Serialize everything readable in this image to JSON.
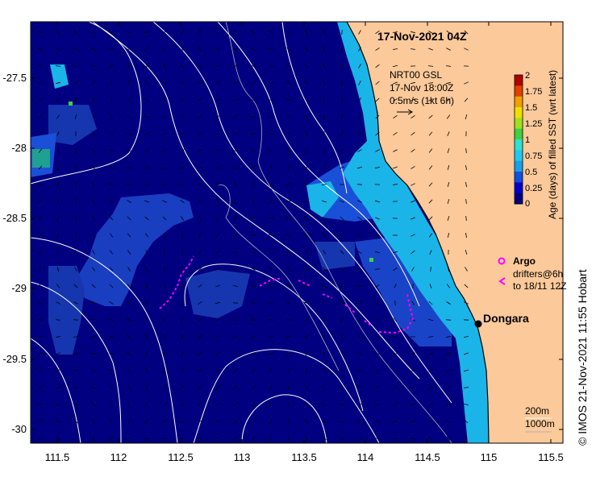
{
  "map": {
    "title": "17-Nov-2021 04Z",
    "x_ticks": [
      "111.5",
      "112",
      "112.5",
      "113",
      "113.5",
      "114",
      "114.5",
      "115",
      "115.5"
    ],
    "y_ticks": [
      "-27.5",
      "-28",
      "-28.5",
      "-29",
      "-29.5",
      "-30"
    ],
    "lon_range": [
      111.3,
      115.6
    ],
    "lat_range": [
      -30.1,
      -27.1
    ]
  },
  "current_annotation": {
    "line1": "NRT00 GSL",
    "line2": "17-Nov 18:00Z",
    "line3": "0.5m/s (1kt 6h)"
  },
  "colorbar": {
    "label": "Age (days) of filled SST (wrt latest)",
    "ticks": [
      "0",
      "0.25",
      "0.5",
      "0.75",
      "1",
      "1.25",
      "1.5",
      "1.75",
      "2"
    ],
    "colors": [
      "#000080",
      "#0000c8",
      "#1050e0",
      "#1aa0e8",
      "#20c8f0",
      "#30e0d0",
      "#40d040",
      "#a0e020",
      "#f0e000",
      "#f0a000",
      "#e04000",
      "#b00000"
    ]
  },
  "legend": {
    "argo_label": "Argo",
    "drifters_line1": "drifters@6h",
    "drifters_line2": "to 18/11 12Z",
    "argo_color": "#ff00ff"
  },
  "places": {
    "dongara": "Dongara"
  },
  "isobaths": {
    "depth1": "200m",
    "depth2": "1000m"
  },
  "credit": "© IMOS 21-Nov-2021 11:55 Hobart",
  "colors": {
    "ocean": "#000080",
    "land": "#fbc99a",
    "shelf_cyan": "#1ab4e8",
    "mid_blue": "#1a4ec8"
  }
}
